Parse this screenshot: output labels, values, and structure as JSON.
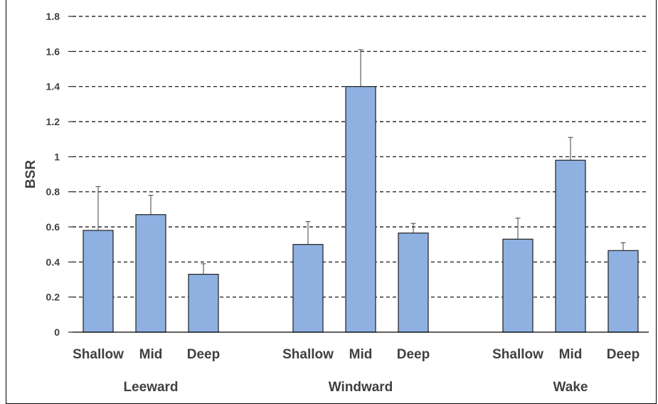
{
  "chart_data": {
    "type": "bar",
    "title": "",
    "xlabel": "",
    "ylabel": "BSR",
    "ylim": [
      0,
      1.8
    ],
    "yticks": [
      0,
      0.2,
      0.4,
      0.6,
      0.8,
      1,
      1.2,
      1.4,
      1.6,
      1.8
    ],
    "ytick_labels": [
      "0",
      "0.2",
      "0.4",
      "0.6",
      "0.8",
      "1",
      "1.2",
      "1.4",
      "1.6",
      "1.8"
    ],
    "grid": "dashed horizontal",
    "legend": "none",
    "bar_color": "#8EB1E2",
    "bar_edge_color": "#1F1F1F",
    "groups": [
      {
        "name": "Leeward",
        "categories": [
          "Shallow",
          "Mid",
          "Deep"
        ],
        "values": [
          0.58,
          0.67,
          0.33
        ],
        "error_upper": [
          0.25,
          0.11,
          0.06
        ]
      },
      {
        "name": "Windward",
        "categories": [
          "Shallow",
          "Mid",
          "Deep"
        ],
        "values": [
          0.5,
          1.4,
          0.565
        ],
        "error_upper": [
          0.13,
          0.21,
          0.055
        ]
      },
      {
        "name": "Wake",
        "categories": [
          "Shallow",
          "Mid",
          "Deep"
        ],
        "values": [
          0.53,
          0.98,
          0.465
        ],
        "error_upper": [
          0.12,
          0.13,
          0.045
        ]
      }
    ]
  }
}
